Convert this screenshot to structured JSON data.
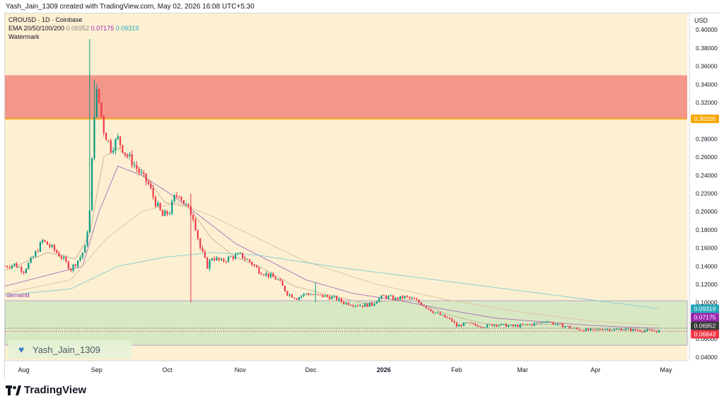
{
  "header": {
    "text": "Yash_Jain_1309 created with TradingView.com, May 02, 2026 16:08 UTC+5:30"
  },
  "legend": {
    "symbol": "CROUSD · 1D · Coinbase",
    "ema_label": "EMA 20/50/100/200",
    "ema_values": [
      "0.06952",
      "0.07175",
      "0.09319"
    ],
    "watermark_label": "Watermark"
  },
  "watermark": {
    "text": "Yash_Jain_1309",
    "icon": "heart-icon"
  },
  "footer": {
    "brand": "TradingView",
    "logo": "tradingview-logo-icon"
  },
  "colors": {
    "background": "#fdf0d2",
    "resistance_zone": "#f5968a",
    "demand_zone": "#d9e8c4",
    "up": "#089981",
    "down": "#f23645",
    "ema20": "#c8b89a",
    "ema50": "#b07ab8",
    "ema100": "#dcc6a0",
    "ema200": "#8fd0d0",
    "resistance_line": "#f7a600"
  },
  "chart_data": {
    "type": "candlestick",
    "currency": "USD",
    "y_ticks": [
      "0.40000",
      "0.38000",
      "0.36000",
      "0.34000",
      "0.32000",
      "0.28000",
      "0.26000",
      "0.24000",
      "0.22000",
      "0.20000",
      "0.18000",
      "0.16000",
      "0.14000",
      "0.12000",
      "0.10000",
      "0.06000",
      "0.04000"
    ],
    "ylim": [
      0.036,
      0.418
    ],
    "x_ticks": [
      "Aug",
      "Sep",
      "Oct",
      "Nov",
      "Dec",
      "2026",
      "Feb",
      "Mar",
      "Apr",
      "May"
    ],
    "x_tick_days": [
      0,
      31,
      61,
      92,
      122,
      153,
      184,
      212,
      243,
      273
    ],
    "xlim": [
      -8,
      282
    ],
    "price_labels": [
      {
        "value": "0.09319",
        "price": 0.09319,
        "color": "#26a6b8"
      },
      {
        "value": "0.07175",
        "price": 0.07175,
        "color": "#9c27b0"
      },
      {
        "value": "0.06952",
        "price": 0.06952,
        "color": "#3a3a3a"
      },
      {
        "value": "0.06843",
        "price": 0.06843,
        "color": "#f23645"
      }
    ],
    "resistance": {
      "value": "0.30205",
      "price": 0.30205,
      "zone": [
        0.302,
        0.35
      ]
    },
    "demand": {
      "label": "demand",
      "zone": [
        0.053,
        0.102
      ]
    },
    "current_price": 0.06843,
    "last_day": 270,
    "close_anchors": [
      [
        -8,
        0.14
      ],
      [
        -4,
        0.142
      ],
      [
        0,
        0.135
      ],
      [
        4,
        0.15
      ],
      [
        8,
        0.168
      ],
      [
        12,
        0.16
      ],
      [
        16,
        0.15
      ],
      [
        20,
        0.137
      ],
      [
        24,
        0.15
      ],
      [
        26,
        0.16
      ],
      [
        28,
        0.2
      ],
      [
        30,
        0.31
      ],
      [
        31,
        0.33
      ],
      [
        32,
        0.32
      ],
      [
        34,
        0.29
      ],
      [
        37,
        0.27
      ],
      [
        40,
        0.28
      ],
      [
        43,
        0.265
      ],
      [
        46,
        0.255
      ],
      [
        50,
        0.24
      ],
      [
        53,
        0.23
      ],
      [
        56,
        0.21
      ],
      [
        59,
        0.195
      ],
      [
        62,
        0.2
      ],
      [
        64,
        0.215
      ],
      [
        66,
        0.22
      ],
      [
        68,
        0.21
      ],
      [
        72,
        0.195
      ],
      [
        75,
        0.16
      ],
      [
        78,
        0.14
      ],
      [
        80,
        0.15
      ],
      [
        84,
        0.145
      ],
      [
        88,
        0.15
      ],
      [
        92,
        0.152
      ],
      [
        96,
        0.145
      ],
      [
        100,
        0.135
      ],
      [
        104,
        0.13
      ],
      [
        108,
        0.125
      ],
      [
        112,
        0.11
      ],
      [
        116,
        0.105
      ],
      [
        120,
        0.11
      ],
      [
        124,
        0.108
      ],
      [
        128,
        0.107
      ],
      [
        132,
        0.105
      ],
      [
        136,
        0.1
      ],
      [
        140,
        0.098
      ],
      [
        144,
        0.097
      ],
      [
        148,
        0.098
      ],
      [
        150,
        0.103
      ],
      [
        153,
        0.107
      ],
      [
        155,
        0.106
      ],
      [
        158,
        0.104
      ],
      [
        162,
        0.106
      ],
      [
        166,
        0.103
      ],
      [
        170,
        0.097
      ],
      [
        174,
        0.09
      ],
      [
        178,
        0.085
      ],
      [
        182,
        0.08
      ],
      [
        184,
        0.074
      ],
      [
        188,
        0.077
      ],
      [
        192,
        0.075
      ],
      [
        196,
        0.074
      ],
      [
        200,
        0.076
      ],
      [
        204,
        0.075
      ],
      [
        208,
        0.074
      ],
      [
        212,
        0.075
      ],
      [
        216,
        0.076
      ],
      [
        220,
        0.078
      ],
      [
        222,
        0.08
      ],
      [
        226,
        0.076
      ],
      [
        230,
        0.074
      ],
      [
        234,
        0.071
      ],
      [
        238,
        0.07
      ],
      [
        242,
        0.069
      ],
      [
        246,
        0.071
      ],
      [
        250,
        0.07
      ],
      [
        254,
        0.071
      ],
      [
        258,
        0.07
      ],
      [
        262,
        0.069
      ],
      [
        266,
        0.069
      ],
      [
        270,
        0.06843
      ]
    ],
    "spikes": [
      {
        "day": 28,
        "high": 0.39,
        "low": 0.19
      },
      {
        "day": 30,
        "high": 0.345,
        "low": 0.28
      },
      {
        "day": 71,
        "high": 0.22,
        "low": 0.1
      },
      {
        "day": 124,
        "high": 0.122,
        "low": 0.1
      }
    ],
    "ema": {
      "ema20": [
        [
          -8,
          0.135
        ],
        [
          10,
          0.155
        ],
        [
          22,
          0.148
        ],
        [
          28,
          0.175
        ],
        [
          34,
          0.26
        ],
        [
          40,
          0.27
        ],
        [
          50,
          0.245
        ],
        [
          60,
          0.21
        ],
        [
          70,
          0.205
        ],
        [
          80,
          0.17
        ],
        [
          90,
          0.15
        ],
        [
          100,
          0.14
        ],
        [
          115,
          0.118
        ],
        [
          130,
          0.108
        ],
        [
          145,
          0.099
        ],
        [
          155,
          0.102
        ],
        [
          165,
          0.103
        ],
        [
          180,
          0.087
        ],
        [
          195,
          0.077
        ],
        [
          210,
          0.075
        ],
        [
          225,
          0.076
        ],
        [
          240,
          0.071
        ],
        [
          255,
          0.07
        ],
        [
          270,
          0.0695
        ]
      ],
      "ema50": [
        [
          -8,
          0.118
        ],
        [
          10,
          0.13
        ],
        [
          25,
          0.14
        ],
        [
          32,
          0.2
        ],
        [
          40,
          0.25
        ],
        [
          50,
          0.24
        ],
        [
          62,
          0.22
        ],
        [
          75,
          0.195
        ],
        [
          90,
          0.165
        ],
        [
          105,
          0.145
        ],
        [
          120,
          0.125
        ],
        [
          140,
          0.11
        ],
        [
          160,
          0.102
        ],
        [
          180,
          0.092
        ],
        [
          200,
          0.083
        ],
        [
          220,
          0.079
        ],
        [
          240,
          0.075
        ],
        [
          260,
          0.0725
        ],
        [
          270,
          0.07175
        ]
      ],
      "ema100": [
        [
          -8,
          0.11
        ],
        [
          20,
          0.125
        ],
        [
          35,
          0.17
        ],
        [
          50,
          0.2
        ],
        [
          65,
          0.21
        ],
        [
          80,
          0.195
        ],
        [
          100,
          0.17
        ],
        [
          120,
          0.145
        ],
        [
          150,
          0.12
        ],
        [
          180,
          0.103
        ],
        [
          210,
          0.09
        ],
        [
          240,
          0.08
        ],
        [
          270,
          0.075
        ]
      ],
      "ema200": [
        [
          -8,
          0.108
        ],
        [
          20,
          0.115
        ],
        [
          40,
          0.14
        ],
        [
          60,
          0.15
        ],
        [
          80,
          0.155
        ],
        [
          100,
          0.152
        ],
        [
          130,
          0.14
        ],
        [
          160,
          0.13
        ],
        [
          190,
          0.12
        ],
        [
          220,
          0.11
        ],
        [
          250,
          0.1
        ],
        [
          270,
          0.09319
        ]
      ]
    }
  }
}
